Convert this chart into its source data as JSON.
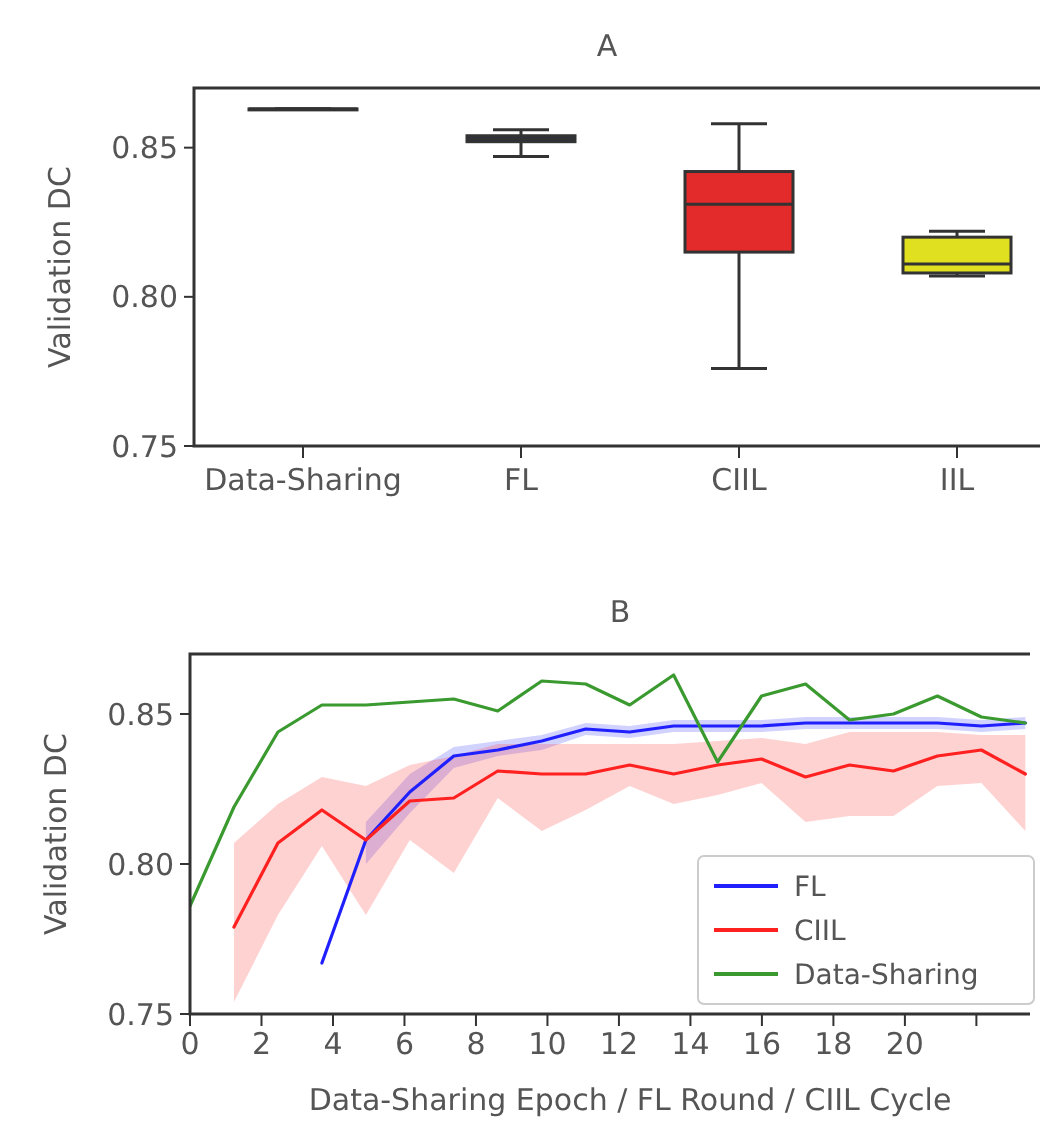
{
  "chart_data": [
    {
      "type": "box",
      "title": "A",
      "ylabel": "Validation DC",
      "categories": [
        "Data-Sharing",
        "FL",
        "CIIL",
        "IIL"
      ],
      "boxes": [
        {
          "low": 0.863,
          "q1": 0.863,
          "median": 0.863,
          "q3": 0.863,
          "high": 0.863
        },
        {
          "low": 0.847,
          "q1": 0.852,
          "median": 0.853,
          "q3": 0.854,
          "high": 0.856
        },
        {
          "low": 0.776,
          "q1": 0.815,
          "median": 0.831,
          "q3": 0.842,
          "high": 0.858
        },
        {
          "low": 0.807,
          "q1": 0.808,
          "median": 0.811,
          "q3": 0.82,
          "high": 0.822
        }
      ],
      "colors": [
        "#555555",
        "#1f2a6b",
        "#e32b2b",
        "#e0e020"
      ],
      "ylim": [
        0.75,
        0.87
      ],
      "yticks": [
        {
          "value": 0.75,
          "label": "0.75"
        },
        {
          "value": 0.8,
          "label": "0.80"
        },
        {
          "value": 0.85,
          "label": "0.85"
        }
      ],
      "grid": false
    },
    {
      "type": "line",
      "title": "B",
      "xlabel": "Data-Sharing Epoch / FL Round / CIIL Cycle",
      "ylabel": "Validation DC",
      "x": [
        0,
        1.23,
        2.46,
        3.69,
        4.92,
        6.15,
        7.38,
        8.61,
        9.84,
        11.07,
        12.3,
        13.53,
        14.76,
        15.99,
        17.22,
        18.45,
        19.68,
        20.91,
        22.14,
        23.37
      ],
      "series": [
        {
          "name": "FL",
          "color": "#2020ff",
          "values": [
            null,
            null,
            null,
            0.767,
            0.808,
            0.824,
            0.836,
            0.838,
            0.841,
            0.845,
            0.844,
            0.846,
            0.846,
            0.846,
            0.847,
            0.847,
            0.847,
            0.847,
            0.846,
            0.847
          ],
          "lower": [
            null,
            null,
            null,
            null,
            0.8,
            0.817,
            0.832,
            0.836,
            0.838,
            0.843,
            0.842,
            0.844,
            0.844,
            0.844,
            0.845,
            0.845,
            0.845,
            0.845,
            0.844,
            0.845
          ],
          "upper": [
            null,
            null,
            null,
            null,
            0.814,
            0.83,
            0.839,
            0.841,
            0.843,
            0.847,
            0.846,
            0.848,
            0.848,
            0.848,
            0.849,
            0.849,
            0.849,
            0.849,
            0.848,
            0.849
          ]
        },
        {
          "name": "CIIL",
          "color": "#ff2020",
          "values": [
            null,
            0.779,
            0.807,
            0.818,
            0.808,
            0.821,
            0.822,
            0.831,
            0.83,
            0.83,
            0.833,
            0.83,
            0.833,
            0.835,
            0.829,
            0.833,
            0.831,
            0.836,
            0.838,
            0.83
          ],
          "lower": [
            null,
            0.754,
            0.783,
            0.806,
            0.783,
            0.808,
            0.797,
            0.822,
            0.811,
            0.818,
            0.826,
            0.82,
            0.823,
            0.827,
            0.814,
            0.816,
            0.816,
            0.826,
            0.827,
            0.811
          ],
          "upper": [
            null,
            0.807,
            0.82,
            0.829,
            0.826,
            0.833,
            0.836,
            0.84,
            0.84,
            0.84,
            0.84,
            0.84,
            0.841,
            0.842,
            0.84,
            0.844,
            0.844,
            0.844,
            0.843,
            0.843
          ]
        },
        {
          "name": "Data-Sharing",
          "color": "#3a9a30",
          "values": [
            0.786,
            0.819,
            0.844,
            0.853,
            0.853,
            0.854,
            0.855,
            0.851,
            0.861,
            0.86,
            0.853,
            0.863,
            0.834,
            0.856,
            0.86,
            0.848,
            0.85,
            0.856,
            0.849,
            0.847
          ]
        }
      ],
      "xlim": [
        0,
        23.5
      ],
      "xticks": [
        0,
        2,
        4,
        6,
        8,
        10,
        12,
        14,
        16,
        18,
        20,
        {
          "value": 22,
          "label": null
        }
      ],
      "ylim": [
        0.75,
        0.87
      ],
      "yticks": [
        {
          "value": 0.75,
          "label": "0.75"
        },
        {
          "value": 0.8,
          "label": "0.80"
        },
        {
          "value": 0.85,
          "label": "0.85"
        }
      ],
      "grid": false,
      "legend": "bottom right",
      "marker": "none",
      "line_style": "solid"
    }
  ]
}
